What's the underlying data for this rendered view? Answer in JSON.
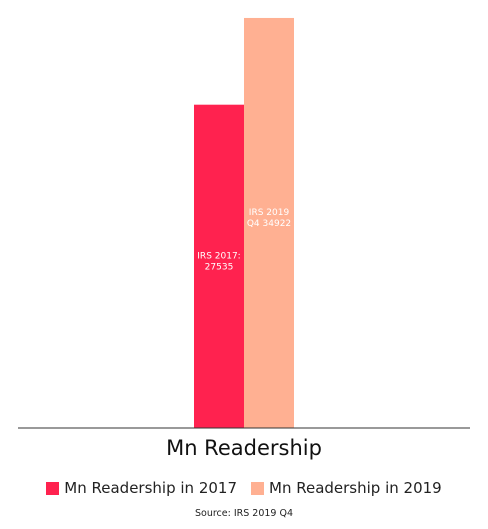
{
  "chart_data": {
    "type": "bar",
    "categories": [
      "Mn Readership"
    ],
    "series": [
      {
        "name": "Mn Readership in 2017",
        "values": [
          27535
        ],
        "data_label": "IRS 2017: 27535",
        "color": "#ff224f"
      },
      {
        "name": "Mn Readership in 2019",
        "values": [
          34922
        ],
        "data_label": "IRS 2019 Q4 34922",
        "color": "#ffb092"
      }
    ],
    "ylim": [
      0,
      35600
    ],
    "grid": false,
    "legend_position": "bottom",
    "source": "Source: IRS 2019 Q4"
  }
}
